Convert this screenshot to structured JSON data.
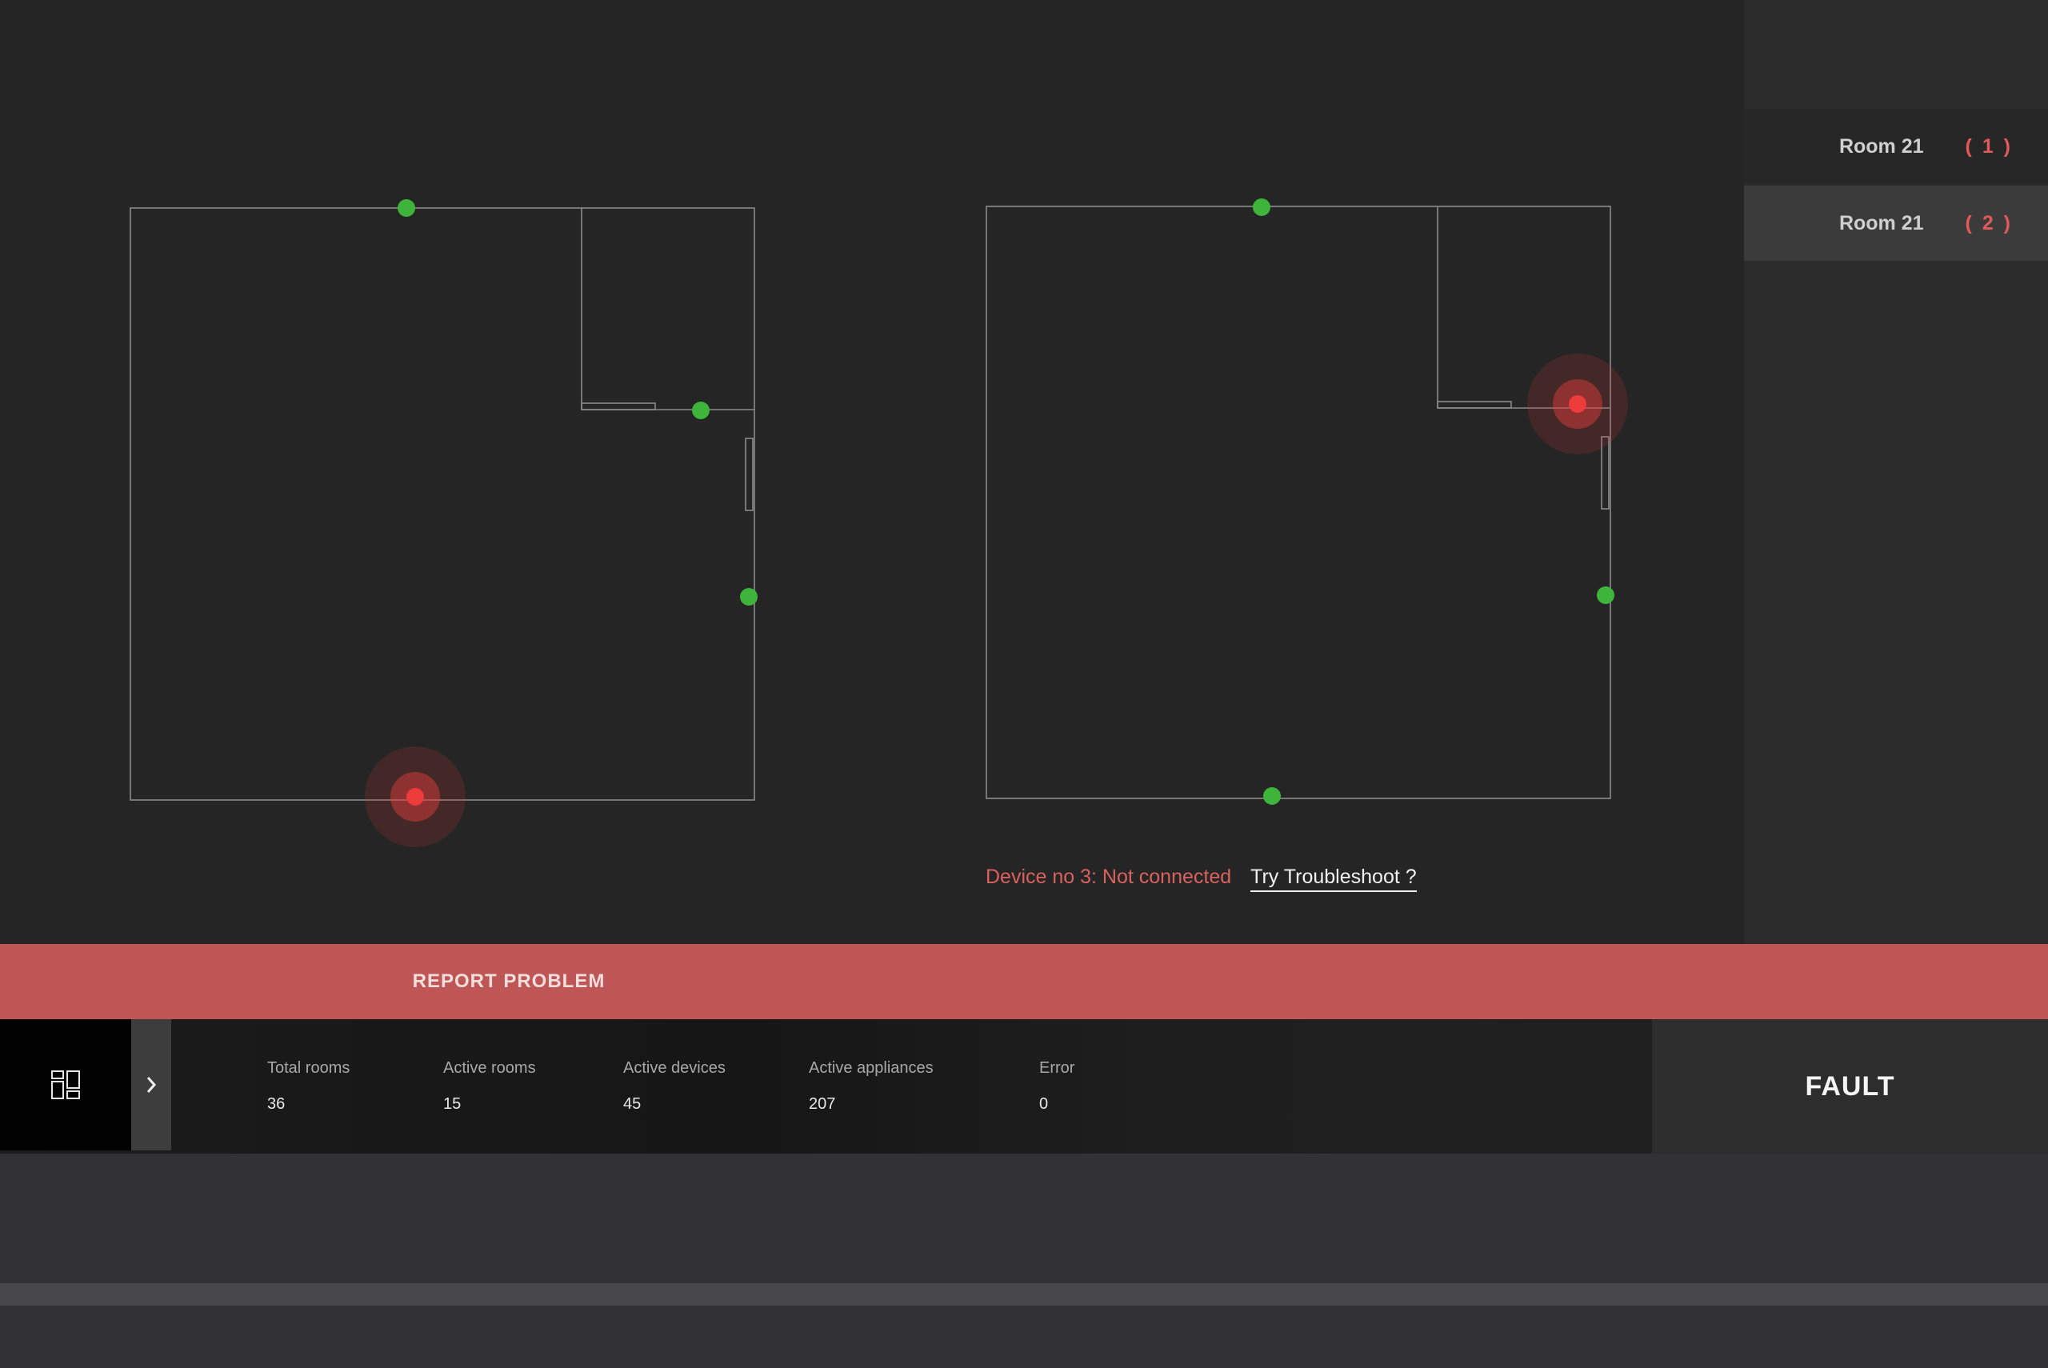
{
  "rooms": {
    "items": [
      {
        "name": "Room 21",
        "count": "( 1 )"
      },
      {
        "name": "Room 21",
        "count": "( 2 )"
      }
    ]
  },
  "status": {
    "message": "Device no 3: Not connected",
    "link": "Try Troubleshoot ?"
  },
  "report": {
    "label": "REPORT PROBLEM"
  },
  "stats": {
    "items": [
      {
        "label": "Total rooms",
        "value": "36"
      },
      {
        "label": "Active rooms",
        "value": "15"
      },
      {
        "label": "Active devices",
        "value": "45"
      },
      {
        "label": "Active appliances",
        "value": "207"
      },
      {
        "label": "Error",
        "value": "0"
      }
    ]
  },
  "fault": {
    "label": "FAULT"
  },
  "icons": {
    "dashboard": "dashboard-grid-icon",
    "expand": "chevron-right-icon",
    "device_ok": "device-connected-dot",
    "device_error": "device-error-dot"
  },
  "colors": {
    "accent_red": "#bf5656",
    "error_text": "#d9625f",
    "device_ok": "#3fb43a",
    "device_error": "#e83b3b"
  }
}
